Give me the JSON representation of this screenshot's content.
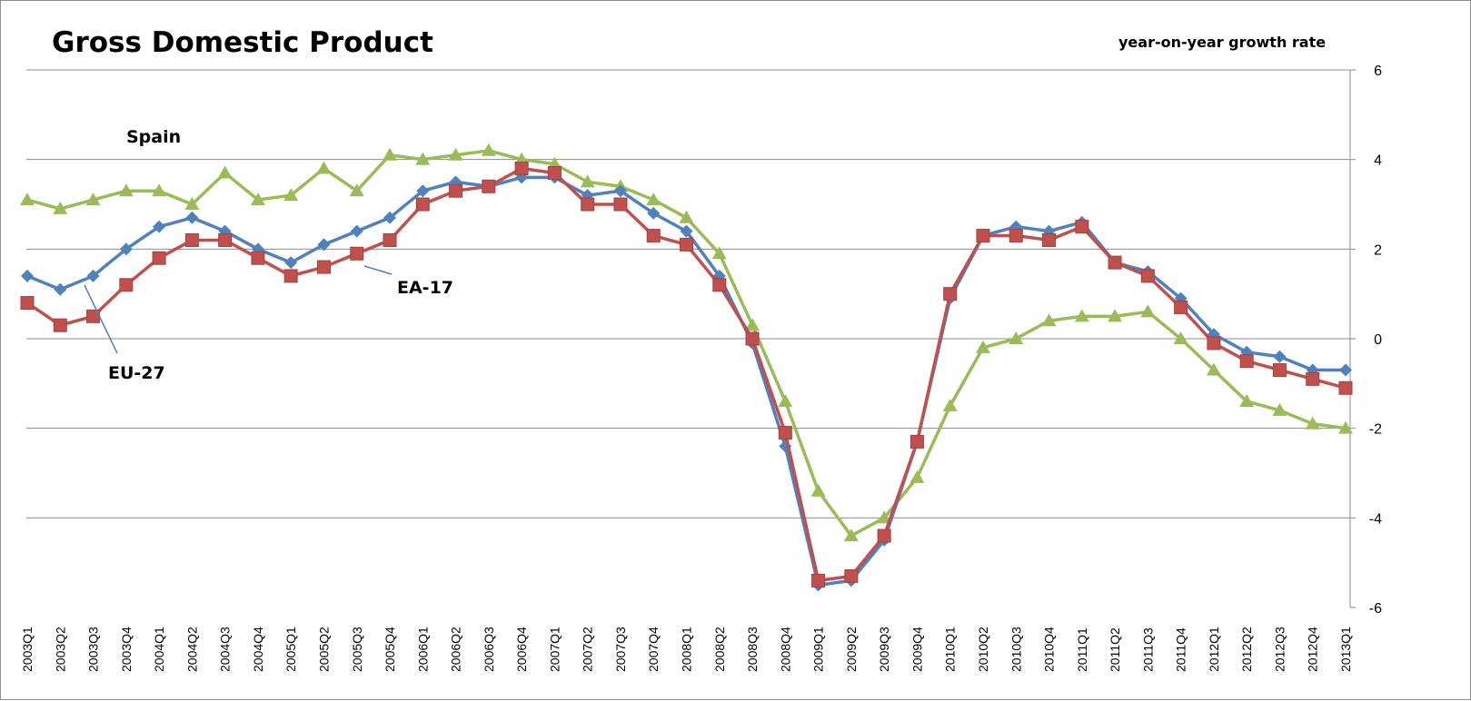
{
  "chart_data": {
    "type": "line",
    "title": "Gross Domestic Product",
    "subtitle": "year-on-year growth rate",
    "ylim": [
      -6,
      6
    ],
    "yticks": [
      6,
      4,
      2,
      0,
      -2,
      -4,
      -6
    ],
    "y_axis_side": "right",
    "grid": true,
    "categories": [
      "2003Q1",
      "2003Q2",
      "2003Q3",
      "2003Q4",
      "2004Q1",
      "2004Q2",
      "2004Q3",
      "2004Q4",
      "2005Q1",
      "2005Q2",
      "2005Q3",
      "2005Q4",
      "2006Q1",
      "2006Q2",
      "2006Q3",
      "2006Q4",
      "2007Q1",
      "2007Q2",
      "2007Q3",
      "2007Q4",
      "2008Q1",
      "2008Q2",
      "2008Q3",
      "2008Q4",
      "2009Q1",
      "2009Q2",
      "2009Q3",
      "2009Q4",
      "2010Q1",
      "2010Q2",
      "2010Q3",
      "2010Q4",
      "2011Q1",
      "2011Q2",
      "2011Q3",
      "2011Q4",
      "2012Q1",
      "2012Q2",
      "2012Q3",
      "2012Q4",
      "2013Q1"
    ],
    "series": [
      {
        "name": "EU-27",
        "color": "#4f81bd",
        "marker": "diamond",
        "values": [
          1.4,
          1.1,
          1.4,
          2.0,
          2.5,
          2.7,
          2.4,
          2.0,
          1.7,
          2.1,
          2.4,
          2.7,
          3.3,
          3.5,
          3.4,
          3.6,
          3.6,
          3.2,
          3.3,
          2.8,
          2.4,
          1.4,
          -0.1,
          -2.4,
          -5.5,
          -5.4,
          -4.5,
          -2.3,
          0.9,
          2.3,
          2.5,
          2.4,
          2.6,
          1.7,
          1.5,
          0.9,
          0.1,
          -0.3,
          -0.4,
          -0.7,
          -0.7
        ]
      },
      {
        "name": "EA-17",
        "color": "#c0504d",
        "marker": "square",
        "values": [
          0.8,
          0.3,
          0.5,
          1.2,
          1.8,
          2.2,
          2.2,
          1.8,
          1.4,
          1.6,
          1.9,
          2.2,
          3.0,
          3.3,
          3.4,
          3.8,
          3.7,
          3.0,
          3.0,
          2.3,
          2.1,
          1.2,
          0.0,
          -2.1,
          -5.4,
          -5.3,
          -4.4,
          -2.3,
          1.0,
          2.3,
          2.3,
          2.2,
          2.5,
          1.7,
          1.4,
          0.7,
          -0.1,
          -0.5,
          -0.7,
          -0.9,
          -1.1
        ]
      },
      {
        "name": "Spain",
        "color": "#9bbb59",
        "marker": "triangle",
        "values": [
          3.1,
          2.9,
          3.1,
          3.3,
          3.3,
          3.0,
          3.7,
          3.1,
          3.2,
          3.8,
          3.3,
          4.1,
          4.0,
          4.1,
          4.2,
          4.0,
          3.9,
          3.5,
          3.4,
          3.1,
          2.7,
          1.9,
          0.3,
          -1.4,
          -3.4,
          -4.4,
          -4.0,
          -3.1,
          -1.5,
          -0.2,
          0.0,
          0.4,
          0.5,
          0.5,
          0.6,
          0.0,
          -0.7,
          -1.4,
          -1.6,
          -1.9,
          -2.0
        ]
      }
    ],
    "annotations": [
      {
        "label": "Spain",
        "series": "Spain"
      },
      {
        "label": "EA-17",
        "series": "EA-17"
      },
      {
        "label": "EU-27",
        "series": "EU-27"
      }
    ]
  }
}
